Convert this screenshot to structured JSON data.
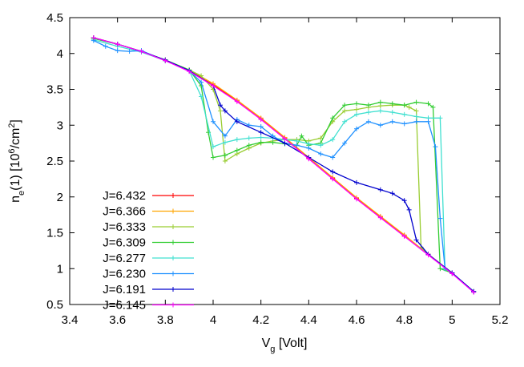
{
  "chart_data": {
    "type": "line",
    "title": "",
    "xlabel": "V",
    "xlabel_sub": "g",
    "xlabel_rest": " [Volt]",
    "ylabel": "n",
    "ylabel_sub": "e",
    "ylabel_mid": "(1) [10",
    "ylabel_sup1": "6",
    "ylabel_mid2": "/cm",
    "ylabel_sup2": "2",
    "ylabel_end": "]",
    "xlim": [
      3.4,
      5.2
    ],
    "ylim": [
      0.5,
      4.5
    ],
    "xticks": [
      "3.4",
      "3.6",
      "3.8",
      "4",
      "4.2",
      "4.4",
      "4.6",
      "4.8",
      "5",
      "5.2"
    ],
    "yticks": [
      "0.5",
      "1",
      "1.5",
      "2",
      "2.5",
      "3",
      "3.5",
      "4",
      "4.5"
    ],
    "grid": false,
    "legend_position": "bottom-left",
    "series": [
      {
        "name": "J=6.432",
        "color": "#ff0000",
        "x": [
          3.5,
          3.6,
          3.7,
          3.8,
          3.9,
          4.0,
          4.1,
          4.2,
          4.3,
          4.4,
          4.5,
          4.6,
          4.7,
          4.8,
          4.9,
          5.0,
          5.09
        ],
        "y": [
          4.22,
          4.13,
          4.03,
          3.9,
          3.76,
          3.56,
          3.34,
          3.09,
          2.82,
          2.54,
          2.26,
          1.98,
          1.72,
          1.46,
          1.2,
          0.94,
          0.68
        ]
      },
      {
        "name": "J=6.366",
        "color": "#ffa500",
        "x": [
          3.5,
          3.6,
          3.7,
          3.8,
          3.9,
          4.0,
          4.1,
          4.2,
          4.3,
          4.4,
          4.5,
          4.6,
          4.7,
          4.8,
          4.9,
          5.0,
          5.09
        ],
        "y": [
          4.22,
          4.13,
          4.03,
          3.91,
          3.77,
          3.58,
          3.35,
          3.1,
          2.83,
          2.55,
          2.27,
          1.99,
          1.73,
          1.47,
          1.2,
          0.94,
          0.68
        ]
      },
      {
        "name": "J=6.333",
        "color": "#9acd32",
        "x": [
          3.5,
          3.6,
          3.7,
          3.8,
          3.9,
          3.95,
          4.0,
          4.03,
          4.05,
          4.1,
          4.15,
          4.2,
          4.25,
          4.3,
          4.35,
          4.4,
          4.45,
          4.5,
          4.55,
          4.6,
          4.65,
          4.7,
          4.75,
          4.8,
          4.82,
          4.85,
          4.87,
          4.9,
          5.0,
          5.09
        ],
        "y": [
          4.21,
          4.13,
          4.03,
          3.91,
          3.77,
          3.69,
          3.5,
          3.2,
          2.5,
          2.6,
          2.68,
          2.75,
          2.78,
          2.8,
          2.8,
          2.78,
          2.82,
          3.05,
          3.2,
          3.22,
          3.25,
          3.27,
          3.28,
          3.28,
          3.25,
          3.2,
          1.3,
          1.2,
          0.94,
          0.68
        ]
      },
      {
        "name": "J=6.309",
        "color": "#32cd32",
        "x": [
          3.5,
          3.6,
          3.7,
          3.8,
          3.9,
          3.95,
          3.98,
          4.0,
          4.05,
          4.1,
          4.15,
          4.2,
          4.25,
          4.3,
          4.35,
          4.37,
          4.4,
          4.45,
          4.5,
          4.55,
          4.6,
          4.65,
          4.7,
          4.75,
          4.8,
          4.85,
          4.9,
          4.92,
          4.95,
          5.0,
          5.09
        ],
        "y": [
          4.21,
          4.13,
          4.03,
          3.91,
          3.77,
          3.55,
          2.9,
          2.55,
          2.58,
          2.65,
          2.72,
          2.76,
          2.76,
          2.74,
          2.72,
          2.85,
          2.72,
          2.75,
          3.1,
          3.28,
          3.3,
          3.28,
          3.32,
          3.3,
          3.28,
          3.32,
          3.3,
          3.25,
          1.0,
          0.94,
          0.68
        ]
      },
      {
        "name": "J=6.277",
        "color": "#40e0d0",
        "x": [
          3.5,
          3.6,
          3.7,
          3.8,
          3.9,
          3.95,
          4.0,
          4.05,
          4.1,
          4.15,
          4.2,
          4.25,
          4.3,
          4.35,
          4.4,
          4.45,
          4.5,
          4.55,
          4.6,
          4.65,
          4.7,
          4.75,
          4.8,
          4.85,
          4.9,
          4.95,
          4.97,
          5.0,
          5.09
        ],
        "y": [
          4.19,
          4.1,
          4.02,
          3.9,
          3.76,
          3.4,
          2.7,
          2.76,
          2.8,
          2.82,
          2.83,
          2.82,
          2.8,
          2.78,
          2.74,
          2.72,
          2.8,
          3.05,
          3.15,
          3.18,
          3.2,
          3.18,
          3.15,
          3.12,
          3.1,
          3.1,
          1.0,
          0.94,
          0.68
        ]
      },
      {
        "name": "J=6.230",
        "color": "#1e90ff",
        "x": [
          3.5,
          3.55,
          3.6,
          3.65,
          3.7,
          3.8,
          3.9,
          3.95,
          4.0,
          4.05,
          4.1,
          4.15,
          4.2,
          4.25,
          4.3,
          4.35,
          4.4,
          4.45,
          4.5,
          4.55,
          4.6,
          4.65,
          4.7,
          4.75,
          4.8,
          4.85,
          4.9,
          4.93,
          4.95,
          4.97,
          5.0,
          5.09
        ],
        "y": [
          4.18,
          4.1,
          4.04,
          4.03,
          4.04,
          3.9,
          3.76,
          3.6,
          3.05,
          2.85,
          3.08,
          3.0,
          2.98,
          2.85,
          2.75,
          2.72,
          2.68,
          2.6,
          2.55,
          2.75,
          2.95,
          3.05,
          3.0,
          3.05,
          3.02,
          3.05,
          3.05,
          2.7,
          1.7,
          1.0,
          0.94,
          0.68
        ]
      },
      {
        "name": "J=6.191",
        "color": "#0000cd",
        "x": [
          3.5,
          3.6,
          3.7,
          3.8,
          3.9,
          4.0,
          4.03,
          4.05,
          4.1,
          4.2,
          4.3,
          4.4,
          4.5,
          4.6,
          4.7,
          4.75,
          4.8,
          4.82,
          4.85,
          4.9,
          5.0,
          5.09
        ],
        "y": [
          4.22,
          4.13,
          4.03,
          3.91,
          3.76,
          3.55,
          3.28,
          3.2,
          3.05,
          2.9,
          2.75,
          2.55,
          2.35,
          2.2,
          2.1,
          2.05,
          1.95,
          1.82,
          1.4,
          1.2,
          0.94,
          0.68
        ]
      },
      {
        "name": "J=6.145",
        "color": "#ff00ff",
        "x": [
          3.5,
          3.6,
          3.7,
          3.8,
          3.9,
          4.0,
          4.1,
          4.2,
          4.3,
          4.4,
          4.5,
          4.6,
          4.7,
          4.8,
          4.9,
          5.0,
          5.09
        ],
        "y": [
          4.22,
          4.13,
          4.03,
          3.9,
          3.75,
          3.55,
          3.33,
          3.08,
          2.81,
          2.53,
          2.25,
          1.97,
          1.71,
          1.45,
          1.19,
          0.93,
          0.67
        ]
      }
    ]
  }
}
